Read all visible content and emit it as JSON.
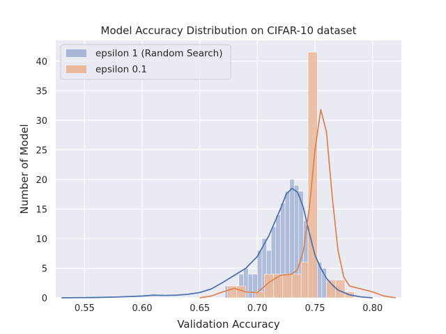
{
  "chart_data": {
    "type": "histogram",
    "title": "Model Accuracy Distribution on CIFAR-10 dataset",
    "xlabel": "Validation Accuracy",
    "ylabel": "Number of Model",
    "xlim": [
      0.525,
      0.825
    ],
    "ylim": [
      0,
      43.5
    ],
    "xticks": [
      0.55,
      0.6,
      0.65,
      0.7,
      0.75,
      0.8
    ],
    "xtick_labels": [
      "0.55",
      "0.60",
      "0.65",
      "0.70",
      "0.75",
      "0.80"
    ],
    "yticks": [
      0,
      5,
      10,
      15,
      20,
      25,
      30,
      35,
      40
    ],
    "ytick_labels": [
      "0",
      "5",
      "10",
      "15",
      "20",
      "25",
      "30",
      "35",
      "40"
    ],
    "grid": true,
    "legend_position": "top-left",
    "series": [
      {
        "name": "epsilon 1 (Random Search)",
        "color": "#4c72b0",
        "bar_color": "#a7b6d6",
        "bin_width": 0.004,
        "bins": [
          {
            "x0": 0.672,
            "count": 2
          },
          {
            "x0": 0.68,
            "count": 2
          },
          {
            "x0": 0.684,
            "count": 4
          },
          {
            "x0": 0.688,
            "count": 5
          },
          {
            "x0": 0.692,
            "count": 4
          },
          {
            "x0": 0.696,
            "count": 4
          },
          {
            "x0": 0.7,
            "count": 8
          },
          {
            "x0": 0.704,
            "count": 10
          },
          {
            "x0": 0.708,
            "count": 8
          },
          {
            "x0": 0.712,
            "count": 12
          },
          {
            "x0": 0.716,
            "count": 14
          },
          {
            "x0": 0.72,
            "count": 16
          },
          {
            "x0": 0.724,
            "count": 18
          },
          {
            "x0": 0.728,
            "count": 20
          },
          {
            "x0": 0.732,
            "count": 19
          },
          {
            "x0": 0.736,
            "count": 18
          },
          {
            "x0": 0.74,
            "count": 13
          },
          {
            "x0": 0.744,
            "count": 11
          },
          {
            "x0": 0.748,
            "count": 7
          },
          {
            "x0": 0.752,
            "count": 6
          },
          {
            "x0": 0.756,
            "count": 5
          },
          {
            "x0": 0.76,
            "count": 3
          },
          {
            "x0": 0.764,
            "count": 2
          },
          {
            "x0": 0.768,
            "count": 2
          }
        ],
        "kde": [
          [
            0.53,
            0.0
          ],
          [
            0.56,
            0.05
          ],
          [
            0.58,
            0.15
          ],
          [
            0.6,
            0.3
          ],
          [
            0.61,
            0.45
          ],
          [
            0.62,
            0.4
          ],
          [
            0.63,
            0.45
          ],
          [
            0.64,
            0.6
          ],
          [
            0.65,
            0.9
          ],
          [
            0.66,
            1.5
          ],
          [
            0.67,
            2.6
          ],
          [
            0.68,
            3.8
          ],
          [
            0.69,
            5.0
          ],
          [
            0.7,
            7.0
          ],
          [
            0.71,
            10.5
          ],
          [
            0.72,
            15.0
          ],
          [
            0.725,
            17.5
          ],
          [
            0.73,
            18.5
          ],
          [
            0.735,
            17.8
          ],
          [
            0.74,
            15.2
          ],
          [
            0.745,
            11.0
          ],
          [
            0.75,
            7.2
          ],
          [
            0.755,
            5.0
          ],
          [
            0.76,
            3.3
          ],
          [
            0.765,
            2.2
          ],
          [
            0.77,
            1.3
          ],
          [
            0.78,
            0.5
          ],
          [
            0.79,
            0.15
          ],
          [
            0.8,
            0.0
          ]
        ]
      },
      {
        "name": "epsilon 0.1",
        "color": "#dd8452",
        "bar_color": "#ebb99b",
        "bin_width": 0.008,
        "bins": [
          {
            "x0": 0.674,
            "count": 2
          },
          {
            "x0": 0.682,
            "count": 2
          },
          {
            "x0": 0.69,
            "count": 0
          },
          {
            "x0": 0.698,
            "count": 1
          },
          {
            "x0": 0.706,
            "count": 4
          },
          {
            "x0": 0.714,
            "count": 4
          },
          {
            "x0": 0.722,
            "count": 4
          },
          {
            "x0": 0.73,
            "count": 4
          },
          {
            "x0": 0.738,
            "count": 6
          },
          {
            "x0": 0.744,
            "count": 41.5
          },
          {
            "x0": 0.76,
            "count": 3
          },
          {
            "x0": 0.768,
            "count": 3
          },
          {
            "x0": 0.776,
            "count": 1
          }
        ],
        "kde": [
          [
            0.65,
            0.0
          ],
          [
            0.66,
            0.3
          ],
          [
            0.67,
            1.0
          ],
          [
            0.68,
            1.6
          ],
          [
            0.69,
            1.0
          ],
          [
            0.7,
            0.9
          ],
          [
            0.71,
            2.6
          ],
          [
            0.72,
            3.8
          ],
          [
            0.73,
            4.0
          ],
          [
            0.735,
            4.8
          ],
          [
            0.74,
            8.0
          ],
          [
            0.745,
            15.0
          ],
          [
            0.75,
            25.0
          ],
          [
            0.755,
            31.8
          ],
          [
            0.76,
            28.0
          ],
          [
            0.765,
            17.0
          ],
          [
            0.77,
            8.0
          ],
          [
            0.775,
            3.5
          ],
          [
            0.78,
            2.0
          ],
          [
            0.79,
            1.5
          ],
          [
            0.8,
            1.0
          ],
          [
            0.81,
            0.3
          ],
          [
            0.82,
            0.0
          ]
        ]
      }
    ]
  }
}
